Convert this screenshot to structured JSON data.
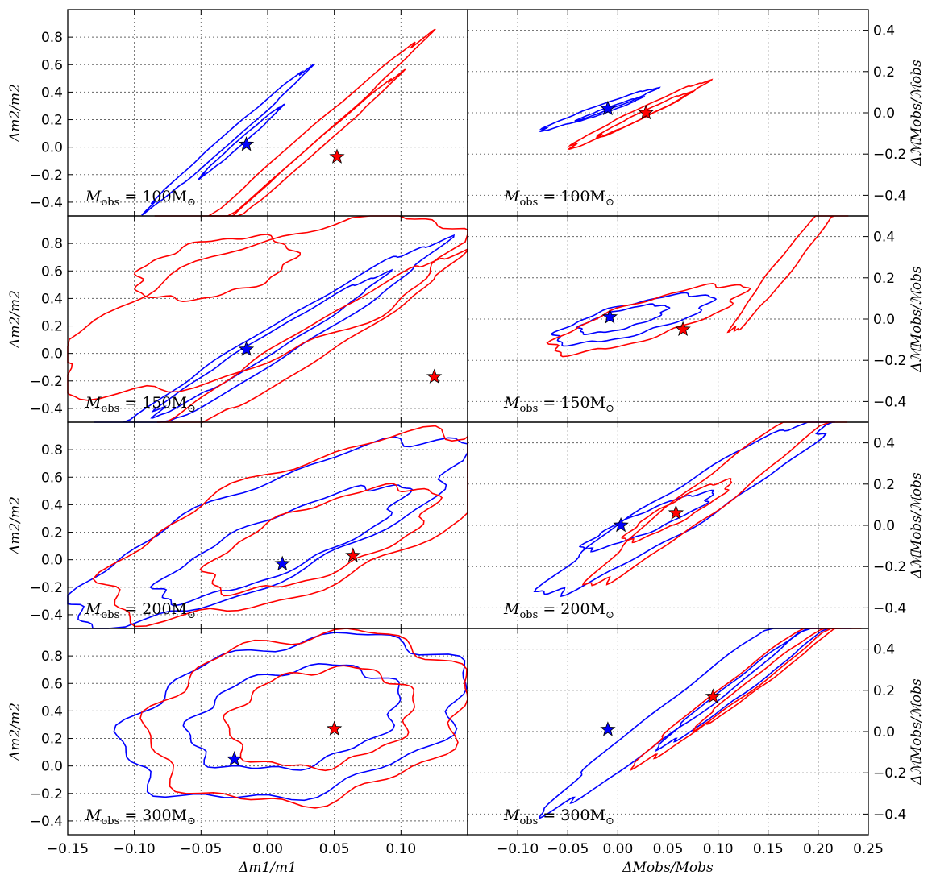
{
  "chart_data": {
    "type": "contour",
    "grid": true,
    "columns": [
      {
        "xlabel": "Δm1/m1",
        "ylabel": "Δm2/m2",
        "xlim": [
          -0.15,
          0.15
        ],
        "ylim": [
          -0.5,
          1.0
        ],
        "xticks": [
          "−0.15",
          "−0.10",
          "−0.05",
          "0.00",
          "0.05",
          "0.10"
        ],
        "yticks": [
          "0.8",
          "0.6",
          "0.4",
          "0.2",
          "0.0",
          "−0.2",
          "−0.4"
        ]
      },
      {
        "xlabel": "ΔMobs/Mobs",
        "ylabel": "ΔℳMobs/ℳobs",
        "xlim": [
          -0.15,
          0.25
        ],
        "ylim": [
          -0.5,
          0.5
        ],
        "xticks": [
          "−0.10",
          "−0.05",
          "0.00",
          "0.05",
          "0.10",
          "0.15",
          "0.20",
          "0.25"
        ],
        "yticks": [
          "0.4",
          "0.2",
          "0.0",
          "−0.2",
          "−0.4"
        ]
      }
    ],
    "rows": [
      {
        "label": "Mobs = 100M⊙",
        "left": {
          "blue_star": [
            -0.016,
            0.02
          ],
          "red_star": [
            0.052,
            -0.07
          ],
          "blue_contours": [
            {
              "center": [
                -0.03,
                0.06
              ],
              "rx": 0.08,
              "ry": 0.035,
              "angle": -0.72
            },
            {
              "center": [
                -0.02,
                0.04
              ],
              "rx": 0.04,
              "ry": 0.02,
              "angle": -0.72
            }
          ],
          "red_contours": [
            {
              "center": [
                0.02,
                -0.03
              ],
              "rx": 0.13,
              "ry": 0.05,
              "angle": -0.72
            },
            {
              "center": [
                0.03,
                -0.05
              ],
              "rx": 0.09,
              "ry": 0.03,
              "angle": -0.72
            }
          ]
        },
        "right": {
          "blue_star": [
            -0.01,
            0.02
          ],
          "red_star": [
            0.028,
            0.0
          ],
          "blue_contours": [
            {
              "center": [
                -0.02,
                0.015
              ],
              "rx": 0.06,
              "ry": 0.018,
              "angle": -0.35
            },
            {
              "center": [
                -0.01,
                0.015
              ],
              "rx": 0.035,
              "ry": 0.01,
              "angle": -0.35
            }
          ],
          "red_contours": [
            {
              "center": [
                0.02,
                -0.01
              ],
              "rx": 0.075,
              "ry": 0.025,
              "angle": -0.45
            },
            {
              "center": [
                0.025,
                -0.01
              ],
              "rx": 0.05,
              "ry": 0.015,
              "angle": -0.45
            }
          ]
        }
      },
      {
        "label": "Mobs = 150M⊙",
        "left": {
          "blue_star": [
            -0.016,
            0.03
          ],
          "red_star": [
            0.125,
            -0.17
          ],
          "blue_contours": [
            {
              "center": [
                0.0,
                0.04
              ],
              "rx": 0.15,
              "ry": 0.12,
              "angle": -0.55
            },
            {
              "center": [
                0.0,
                0.06
              ],
              "rx": 0.1,
              "ry": 0.07,
              "angle": -0.55
            }
          ],
          "red_contours": [
            {
              "center": [
                -0.01,
                0.35
              ],
              "rx": 0.16,
              "ry": 0.42,
              "angle": -0.35
            },
            {
              "center": [
                0.03,
                0.05
              ],
              "rx": 0.13,
              "ry": 0.12,
              "angle": -0.55
            },
            {
              "center": [
                -0.04,
                0.62
              ],
              "rx": 0.06,
              "ry": 0.2,
              "angle": -0.2
            }
          ]
        },
        "right": {
          "blue_star": [
            -0.008,
            0.01
          ],
          "red_star": [
            0.065,
            -0.05
          ],
          "blue_contours": [
            {
              "center": [
                0.015,
                0.0
              ],
              "rx": 0.08,
              "ry": 0.075,
              "angle": -0.25
            },
            {
              "center": [
                0.005,
                0.0
              ],
              "rx": 0.045,
              "ry": 0.045,
              "angle": -0.25
            }
          ],
          "red_contours": [
            {
              "center": [
                0.03,
                0.0
              ],
              "rx": 0.1,
              "ry": 0.09,
              "angle": -0.3
            },
            {
              "center": [
                0.17,
                0.28
              ],
              "rx": 0.09,
              "ry": 0.04,
              "angle": -0.9
            }
          ]
        }
      },
      {
        "label": "Mobs = 200M⊙",
        "left": {
          "blue_star": [
            0.011,
            -0.03
          ],
          "red_star": [
            0.064,
            0.03
          ],
          "blue_contours": [
            {
              "center": [
                0.0,
                0.2
              ],
              "rx": 0.16,
              "ry": 0.35,
              "angle": -0.4
            },
            {
              "center": [
                0.01,
                0.12
              ],
              "rx": 0.1,
              "ry": 0.2,
              "angle": -0.4
            }
          ],
          "red_contours": [
            {
              "center": [
                0.03,
                0.25
              ],
              "rx": 0.16,
              "ry": 0.45,
              "angle": -0.35
            },
            {
              "center": [
                0.04,
                0.15
              ],
              "rx": 0.09,
              "ry": 0.25,
              "angle": -0.35
            }
          ]
        },
        "right": {
          "blue_star": [
            0.003,
            0.0
          ],
          "red_star": [
            0.058,
            0.06
          ],
          "blue_contours": [
            {
              "center": [
                0.07,
                0.1
              ],
              "rx": 0.17,
              "ry": 0.1,
              "angle": -0.55
            },
            {
              "center": [
                0.03,
                0.02
              ],
              "rx": 0.07,
              "ry": 0.05,
              "angle": -0.4
            }
          ],
          "red_contours": [
            {
              "center": [
                0.1,
                0.18
              ],
              "rx": 0.16,
              "ry": 0.08,
              "angle": -0.65
            },
            {
              "center": [
                0.06,
                0.07
              ],
              "rx": 0.06,
              "ry": 0.05,
              "angle": -0.5
            }
          ]
        }
      },
      {
        "label": "Mobs = 300M⊙",
        "left": {
          "blue_star": [
            -0.025,
            0.05
          ],
          "red_star": [
            0.05,
            0.27
          ],
          "blue_contours": [
            {
              "center": [
                0.02,
                0.35
              ],
              "rx": 0.13,
              "ry": 0.55,
              "angle": -0.2
            },
            {
              "center": [
                0.02,
                0.35
              ],
              "rx": 0.08,
              "ry": 0.35,
              "angle": -0.2
            }
          ],
          "red_contours": [
            {
              "center": [
                0.03,
                0.35
              ],
              "rx": 0.12,
              "ry": 0.6,
              "angle": -0.15
            },
            {
              "center": [
                0.04,
                0.35
              ],
              "rx": 0.07,
              "ry": 0.35,
              "angle": -0.15
            }
          ]
        },
        "right": {
          "blue_star": [
            -0.01,
            0.01
          ],
          "red_star": [
            0.095,
            0.17
          ],
          "blue_contours": [
            {
              "center": [
                0.08,
                0.17
              ],
              "rx": 0.19,
              "ry": 0.07,
              "angle": -0.65
            },
            {
              "center": [
                0.13,
                0.25
              ],
              "rx": 0.11,
              "ry": 0.04,
              "angle": -0.65
            }
          ],
          "red_contours": [
            {
              "center": [
                0.13,
                0.25
              ],
              "rx": 0.14,
              "ry": 0.05,
              "angle": -0.65
            },
            {
              "center": [
                0.15,
                0.28
              ],
              "rx": 0.09,
              "ry": 0.03,
              "angle": -0.65
            }
          ]
        }
      }
    ],
    "colors": {
      "blue": "#0000ff",
      "red": "#ff0000"
    }
  }
}
